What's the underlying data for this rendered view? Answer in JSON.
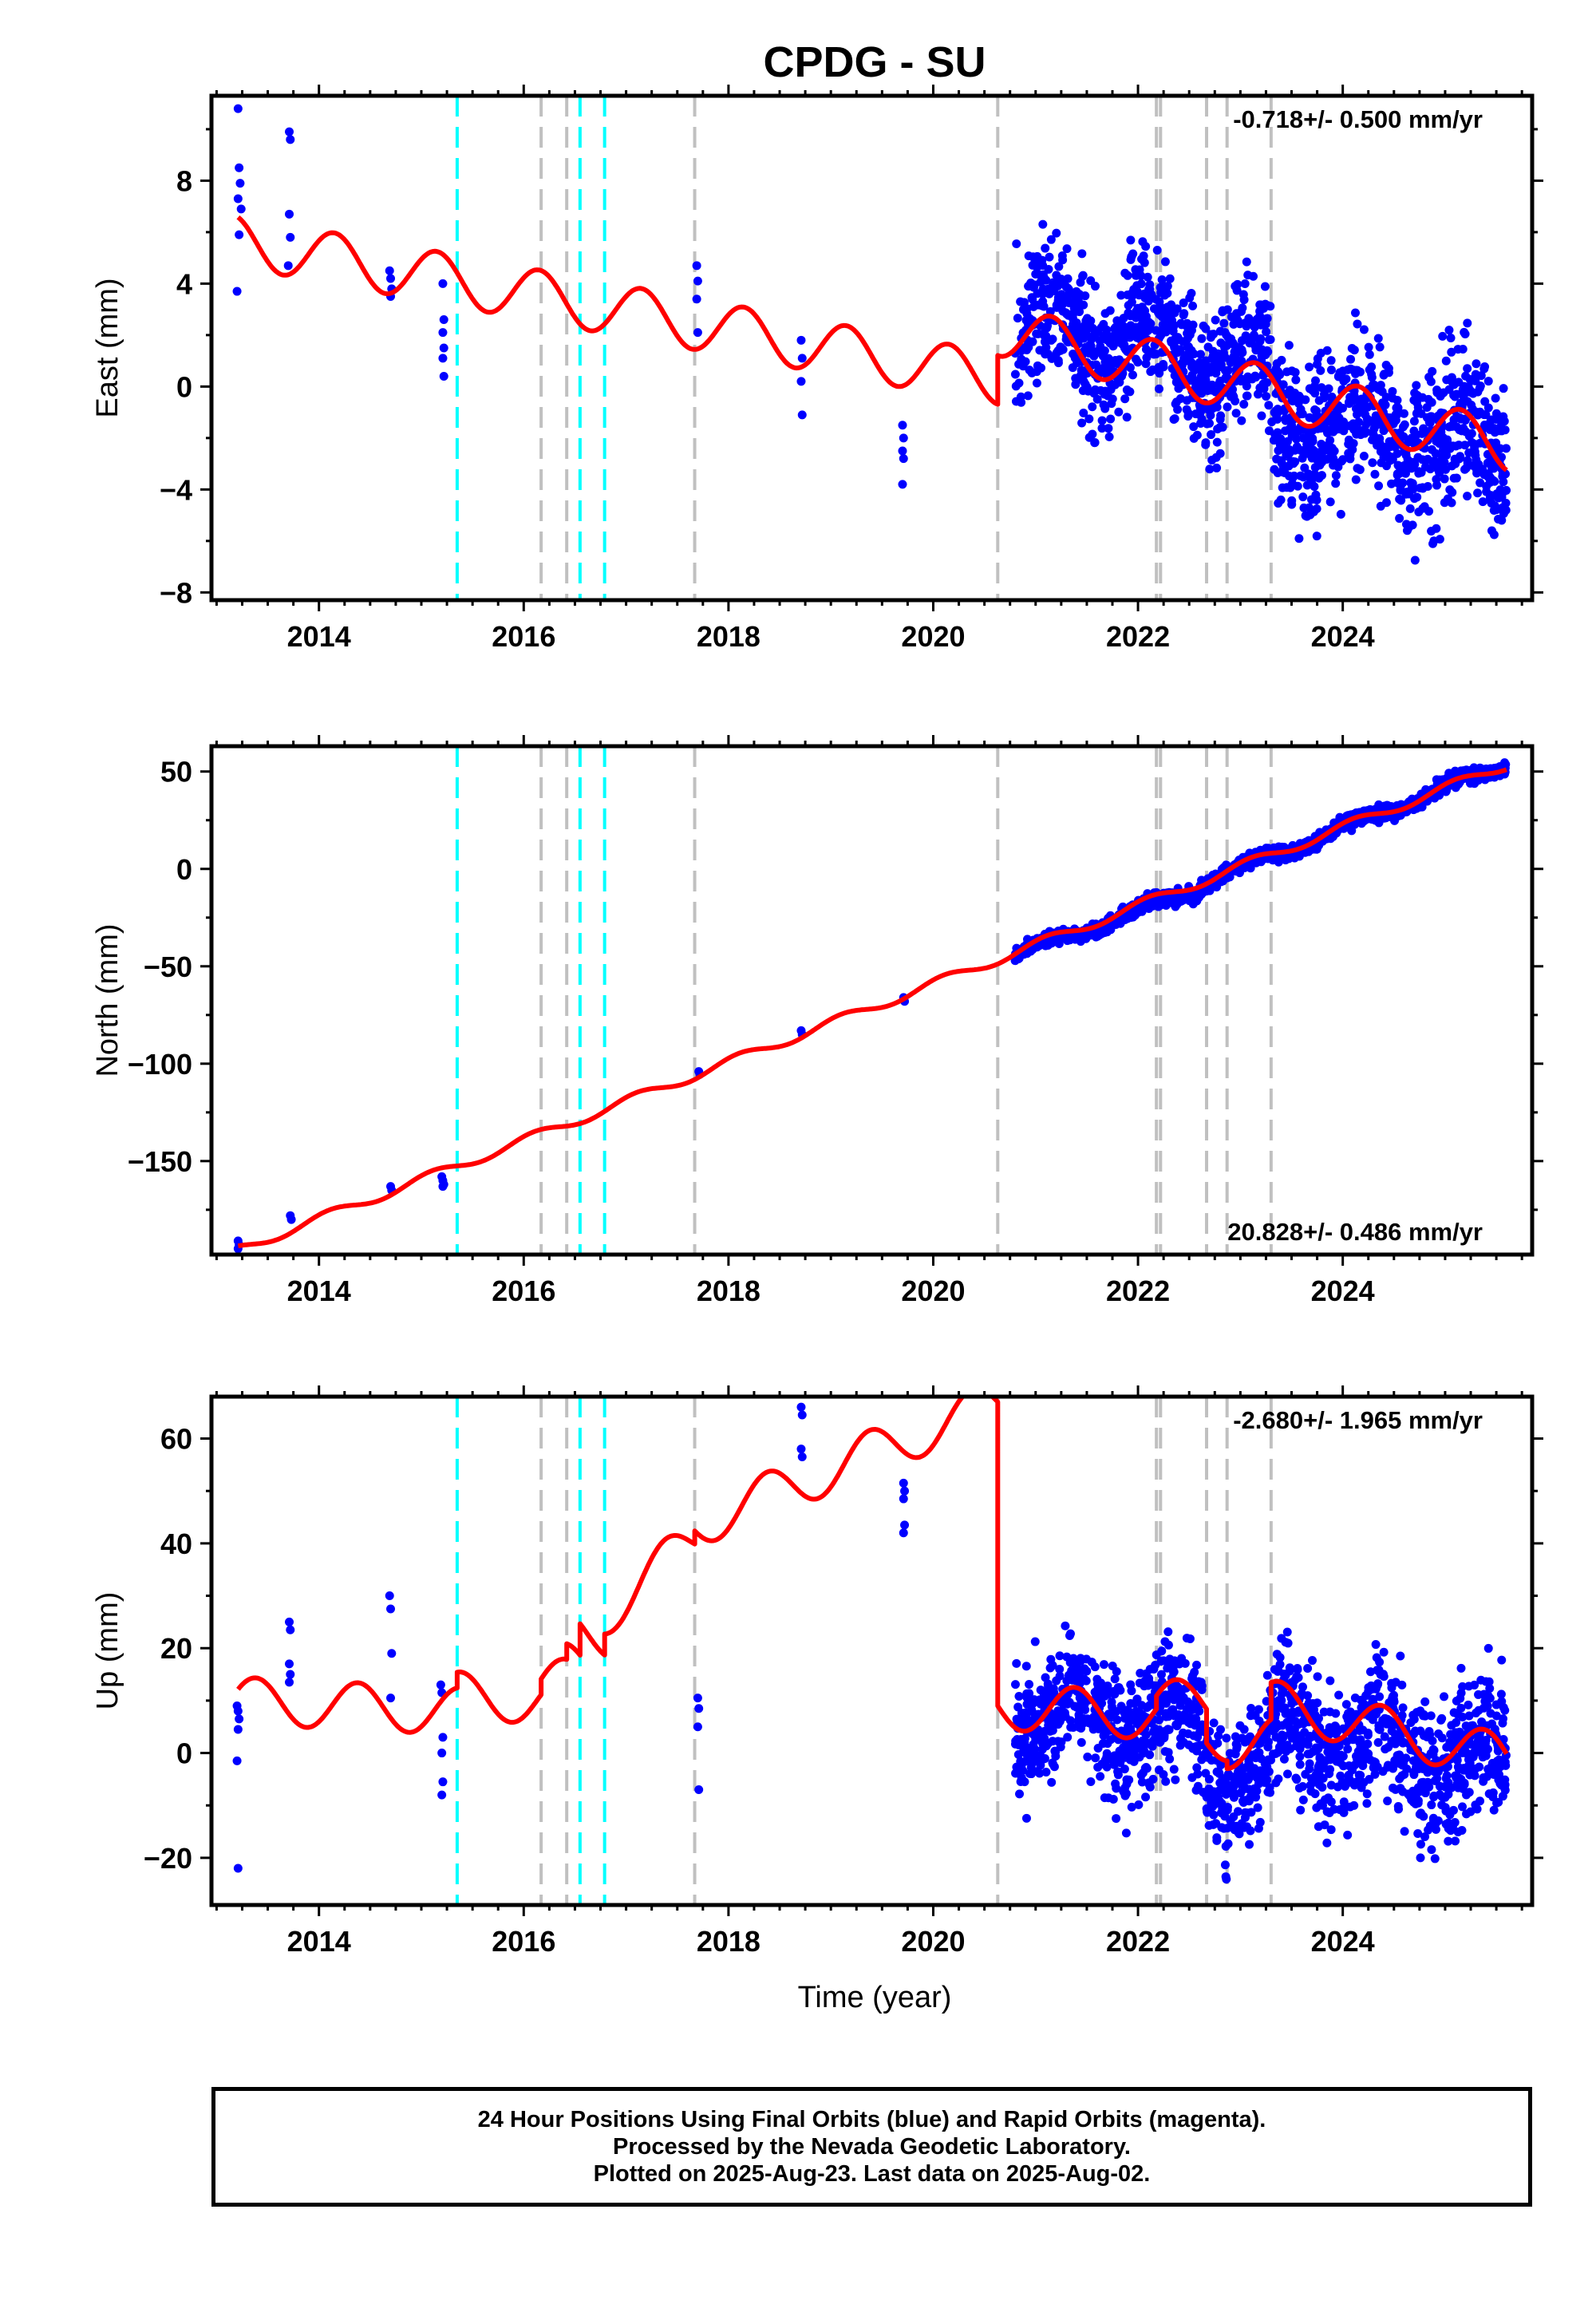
{
  "figure": {
    "title": "CPDG - SU",
    "xlabel": "Time (year)",
    "footer": [
      "24 Hour Positions Using Final Orbits (blue) and Rapid Orbits (magenta).",
      "Processed by the Nevada Geodetic Laboratory.",
      "Plotted on 2025-Aug-23. Last data on 2025-Aug-02."
    ]
  },
  "colors": {
    "data_points": "#0000ff",
    "model_fit": "#ff0000",
    "equipment_change_line": "#c0c0c0",
    "earthquake_line": "#00ffff"
  },
  "chart_data": [
    {
      "type": "scatter",
      "component": "east",
      "ylabel": "East (mm)",
      "rate_label": "-0.718+/- 0.500 mm/yr",
      "xlim": [
        2012.95,
        2025.85
      ],
      "ylim": [
        -8.3,
        11.3
      ],
      "xticks": [
        2014,
        2016,
        2018,
        2020,
        2022,
        2024
      ],
      "yticks": [
        -8,
        -4,
        0,
        4,
        8
      ],
      "ytick_labels": [
        "−8",
        "−4",
        "0",
        "4",
        "8"
      ],
      "grid": false,
      "series": [
        {
          "kind": "points",
          "values": [
            [
              2013.21,
              10.8
            ],
            [
              2013.22,
              8.5
            ],
            [
              2013.23,
              7.9
            ],
            [
              2013.21,
              7.3
            ],
            [
              2013.24,
              6.9
            ],
            [
              2013.22,
              5.9
            ],
            [
              2013.2,
              3.7
            ],
            [
              2013.71,
              9.9
            ],
            [
              2013.72,
              9.6
            ],
            [
              2013.71,
              6.7
            ],
            [
              2013.72,
              5.8
            ],
            [
              2013.7,
              4.7
            ],
            [
              2014.69,
              4.5
            ],
            [
              2014.7,
              4.2
            ],
            [
              2014.71,
              3.8
            ],
            [
              2014.7,
              3.5
            ],
            [
              2015.21,
              4.0
            ],
            [
              2015.22,
              2.6
            ],
            [
              2015.21,
              2.1
            ],
            [
              2015.22,
              1.5
            ],
            [
              2015.21,
              1.1
            ],
            [
              2015.22,
              0.4
            ],
            [
              2017.69,
              4.7
            ],
            [
              2017.7,
              4.1
            ],
            [
              2017.69,
              3.4
            ],
            [
              2017.7,
              2.1
            ],
            [
              2018.71,
              1.8
            ],
            [
              2018.72,
              1.1
            ],
            [
              2018.71,
              0.2
            ],
            [
              2018.72,
              -1.1
            ],
            [
              2019.7,
              -1.5
            ],
            [
              2019.71,
              -2.0
            ],
            [
              2019.7,
              -2.5
            ],
            [
              2019.71,
              -2.8
            ],
            [
              2019.7,
              -3.8
            ]
          ],
          "dense_segments": [
            {
              "x_start": 2020.8,
              "x_end": 2021.9,
              "y_start": 2.3,
              "y_end": 1.8,
              "scatter": 1.3
            },
            {
              "x_start": 2021.9,
              "x_end": 2022.6,
              "y_start": 2.4,
              "y_end": 1.0,
              "scatter": 1.3
            },
            {
              "x_start": 2022.6,
              "x_end": 2023.3,
              "y_start": 1.0,
              "y_end": 0.6,
              "scatter": 1.3
            },
            {
              "x_start": 2023.3,
              "x_end": 2025.6,
              "y_start": -1.2,
              "y_end": -2.2,
              "scatter": 1.5
            }
          ]
        },
        {
          "kind": "model",
          "trend": [
            {
              "x_start": 2013.21,
              "x_end": 2020.63,
              "y_start": 5.65,
              "y_end": 0.3
            },
            {
              "x_start": 2020.63,
              "x_end": 2025.6,
              "y_start": 2.2,
              "y_end": -2.3
            }
          ],
          "seasonal_amplitude": 1.0,
          "seasonal_peak_year_fraction": 0.15
        }
      ],
      "equipment_change_years": [
        2016.17,
        2016.42,
        2017.67,
        2020.63,
        2022.18,
        2022.22,
        2022.67,
        2022.87,
        2023.3
      ],
      "earthquake_years": [
        2015.35,
        2016.55,
        2016.79
      ]
    },
    {
      "type": "scatter",
      "component": "north",
      "ylabel": "North (mm)",
      "rate_label": "20.828+/- 0.486 mm/yr",
      "xlim": [
        2012.95,
        2025.85
      ],
      "ylim": [
        -198,
        63
      ],
      "xticks": [
        2014,
        2016,
        2018,
        2020,
        2022,
        2024
      ],
      "yticks": [
        -150,
        -100,
        -50,
        0,
        50
      ],
      "ytick_labels": [
        "−150",
        "−100",
        "−50",
        "0",
        "50"
      ],
      "grid": false,
      "series": [
        {
          "kind": "points",
          "values": [
            [
              2013.21,
              -191.0
            ],
            [
              2013.22,
              -193.0
            ],
            [
              2013.21,
              -195.0
            ],
            [
              2013.72,
              -178.0
            ],
            [
              2013.73,
              -180.0
            ],
            [
              2014.7,
              -163.0
            ],
            [
              2014.71,
              -165.0
            ],
            [
              2015.2,
              -158.0
            ],
            [
              2015.21,
              -160.0
            ],
            [
              2015.22,
              -162.0
            ],
            [
              2015.21,
              -163.0
            ],
            [
              2017.71,
              -104.0
            ],
            [
              2017.72,
              -105.5
            ],
            [
              2018.71,
              -83.0
            ],
            [
              2018.72,
              -85.0
            ],
            [
              2019.71,
              -66.0
            ],
            [
              2019.72,
              -68.0
            ]
          ],
          "dense_segments": [
            {
              "x_start": 2020.8,
              "x_end": 2022.6,
              "y_start": -44.0,
              "y_end": -10.0,
              "scatter": 1.8
            },
            {
              "x_start": 2022.6,
              "x_end": 2025.6,
              "y_start": -8.0,
              "y_end": 54.0,
              "scatter": 1.8
            }
          ]
        },
        {
          "kind": "model",
          "trend": [
            {
              "x_start": 2013.21,
              "x_end": 2025.6,
              "y_start": -195.5,
              "y_end": 53.5
            }
          ],
          "seasonal_amplitude": 2.5,
          "seasonal_peak_year_fraction": 0.1
        }
      ],
      "equipment_change_years": [
        2016.17,
        2016.42,
        2017.67,
        2020.63,
        2022.18,
        2022.22,
        2022.67,
        2022.87,
        2023.3
      ],
      "earthquake_years": [
        2015.35,
        2016.55,
        2016.79
      ]
    },
    {
      "type": "scatter",
      "component": "up",
      "ylabel": "Up (mm)",
      "rate_label": "-2.680+/- 1.965 mm/yr",
      "xlim": [
        2012.95,
        2025.85
      ],
      "ylim": [
        -29,
        68
      ],
      "xticks": [
        2014,
        2016,
        2018,
        2020,
        2022,
        2024
      ],
      "yticks": [
        -20,
        0,
        20,
        40,
        60
      ],
      "ytick_labels": [
        "−20",
        "0",
        "20",
        "40",
        "60"
      ],
      "grid": false,
      "series": [
        {
          "kind": "points",
          "values": [
            [
              2013.2,
              9.0
            ],
            [
              2013.21,
              8.0
            ],
            [
              2013.22,
              6.5
            ],
            [
              2013.21,
              4.5
            ],
            [
              2013.2,
              -1.5
            ],
            [
              2013.21,
              -22.0
            ],
            [
              2013.71,
              25.0
            ],
            [
              2013.72,
              23.5
            ],
            [
              2013.71,
              17.0
            ],
            [
              2013.72,
              15.0
            ],
            [
              2013.71,
              13.5
            ],
            [
              2014.69,
              30.0
            ],
            [
              2014.7,
              27.5
            ],
            [
              2014.71,
              19.0
            ],
            [
              2014.7,
              10.5
            ],
            [
              2015.19,
              13.0
            ],
            [
              2015.2,
              11.5
            ],
            [
              2015.21,
              3.0
            ],
            [
              2015.2,
              0.0
            ],
            [
              2015.21,
              -5.5
            ],
            [
              2015.2,
              -8.0
            ],
            [
              2017.7,
              10.5
            ],
            [
              2017.71,
              8.5
            ],
            [
              2017.7,
              5.0
            ],
            [
              2017.71,
              -7.0
            ],
            [
              2018.71,
              66.0
            ],
            [
              2018.72,
              64.5
            ],
            [
              2018.71,
              58.0
            ],
            [
              2018.72,
              56.5
            ],
            [
              2019.71,
              51.5
            ],
            [
              2019.72,
              50.0
            ],
            [
              2019.71,
              48.5
            ],
            [
              2019.72,
              43.5
            ],
            [
              2019.71,
              42.0
            ]
          ],
          "dense_segments": [
            {
              "x_start": 2020.8,
              "x_end": 2022.65,
              "y_start": 7.0,
              "y_end": 5.0,
              "scatter": 6.0
            },
            {
              "x_start": 2022.65,
              "x_end": 2023.3,
              "y_start": -4.0,
              "y_end": -2.0,
              "scatter": 6.0
            },
            {
              "x_start": 2023.3,
              "x_end": 2025.6,
              "y_start": 5.0,
              "y_end": -3.0,
              "scatter": 6.5
            }
          ]
        },
        {
          "kind": "model",
          "trend": [
            {
              "x_start": 2013.21,
              "x_end": 2015.35,
              "y_start": 10.0,
              "y_end": 8.0
            },
            {
              "x_start": 2015.35,
              "x_end": 2016.17,
              "y_start": 11.0,
              "y_end": 10.0
            },
            {
              "x_start": 2016.17,
              "x_end": 2016.42,
              "y_start": 13.0,
              "y_end": 13.5
            },
            {
              "x_start": 2016.42,
              "x_end": 2016.55,
              "y_start": 16.5,
              "y_end": 16.5
            },
            {
              "x_start": 2016.55,
              "x_end": 2016.79,
              "y_start": 22.5,
              "y_end": 22.5
            },
            {
              "x_start": 2016.79,
              "x_end": 2017.67,
              "y_start": 26.5,
              "y_end": 41.0
            },
            {
              "x_start": 2017.67,
              "x_end": 2020.63,
              "y_start": 43.5,
              "y_end": 67.0
            },
            {
              "x_start": 2020.63,
              "x_end": 2022.18,
              "y_start": 9.0,
              "y_end": 7.0
            },
            {
              "x_start": 2022.18,
              "x_end": 2022.67,
              "y_start": 9.5,
              "y_end": 9.5
            },
            {
              "x_start": 2022.67,
              "x_end": 2022.87,
              "y_start": 3.0,
              "y_end": 3.0
            },
            {
              "x_start": 2022.87,
              "x_end": 2023.3,
              "y_start": 1.5,
              "y_end": 2.5
            },
            {
              "x_start": 2023.3,
              "x_end": 2025.6,
              "y_start": 9.5,
              "y_end": -1.0
            }
          ],
          "seasonal_amplitude": 4.5,
          "seasonal_peak_year_fraction": 0.38
        }
      ],
      "equipment_change_years": [
        2016.17,
        2016.42,
        2017.67,
        2020.63,
        2022.18,
        2022.22,
        2022.67,
        2022.87,
        2023.3
      ],
      "earthquake_years": [
        2015.35,
        2016.55,
        2016.79
      ]
    }
  ]
}
